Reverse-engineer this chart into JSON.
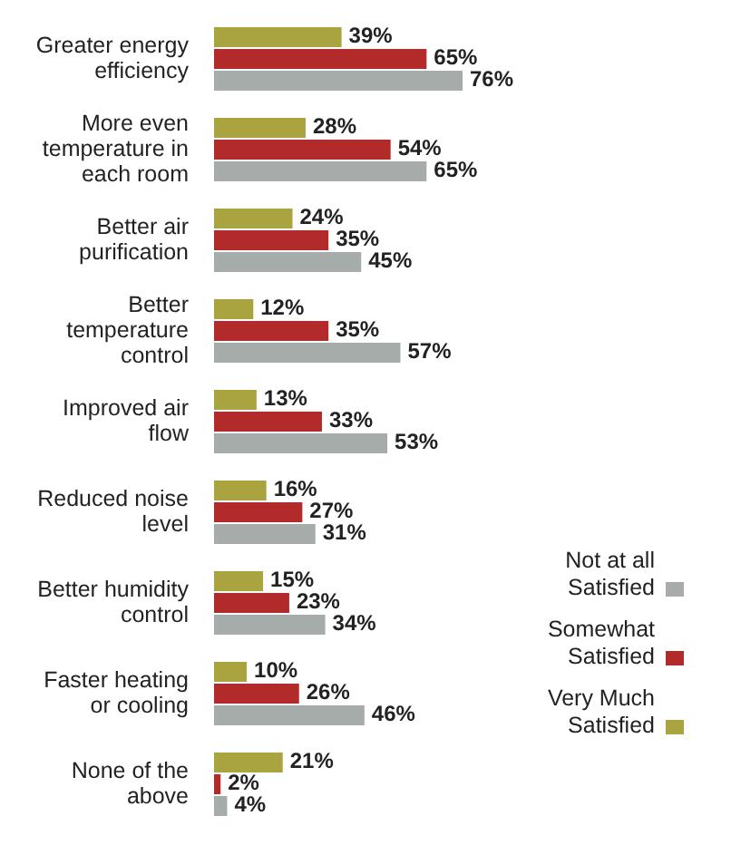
{
  "chart_data": {
    "type": "bar",
    "orientation": "horizontal",
    "legend": "bottom right",
    "grid": false,
    "categories": [
      "Greater energy efficiency",
      "More even temperature in each room",
      "Better air purification",
      "Better temperature control",
      "Improved air flow",
      "Reduced noise level",
      "Better humidity control",
      "Faster heating or cooling",
      "None of the above"
    ],
    "series": [
      {
        "name": "Very Much Satisfied",
        "color": "#a9a43f",
        "values": [
          39,
          28,
          24,
          12,
          13,
          16,
          15,
          10,
          21
        ],
        "value_labels": [
          "39%",
          "28%",
          "24%",
          "12%",
          "13%",
          "16%",
          "15%",
          "10%",
          "21%"
        ]
      },
      {
        "name": "Somewhat Satisfied",
        "color": "#b22a2a",
        "values": [
          65,
          54,
          35,
          35,
          33,
          27,
          23,
          26,
          2
        ],
        "value_labels": [
          "65%",
          "54%",
          "35%",
          "35%",
          "33%",
          "27%",
          "23%",
          "26%",
          "2%"
        ]
      },
      {
        "name": "Not at all Satisfied",
        "color": "#a6aca9",
        "values": [
          76,
          65,
          45,
          57,
          53,
          31,
          34,
          46,
          4
        ],
        "value_labels": [
          "76%",
          "65%",
          "45%",
          "57%",
          "53%",
          "31%",
          "34%",
          "46%",
          "4%"
        ]
      }
    ]
  }
}
